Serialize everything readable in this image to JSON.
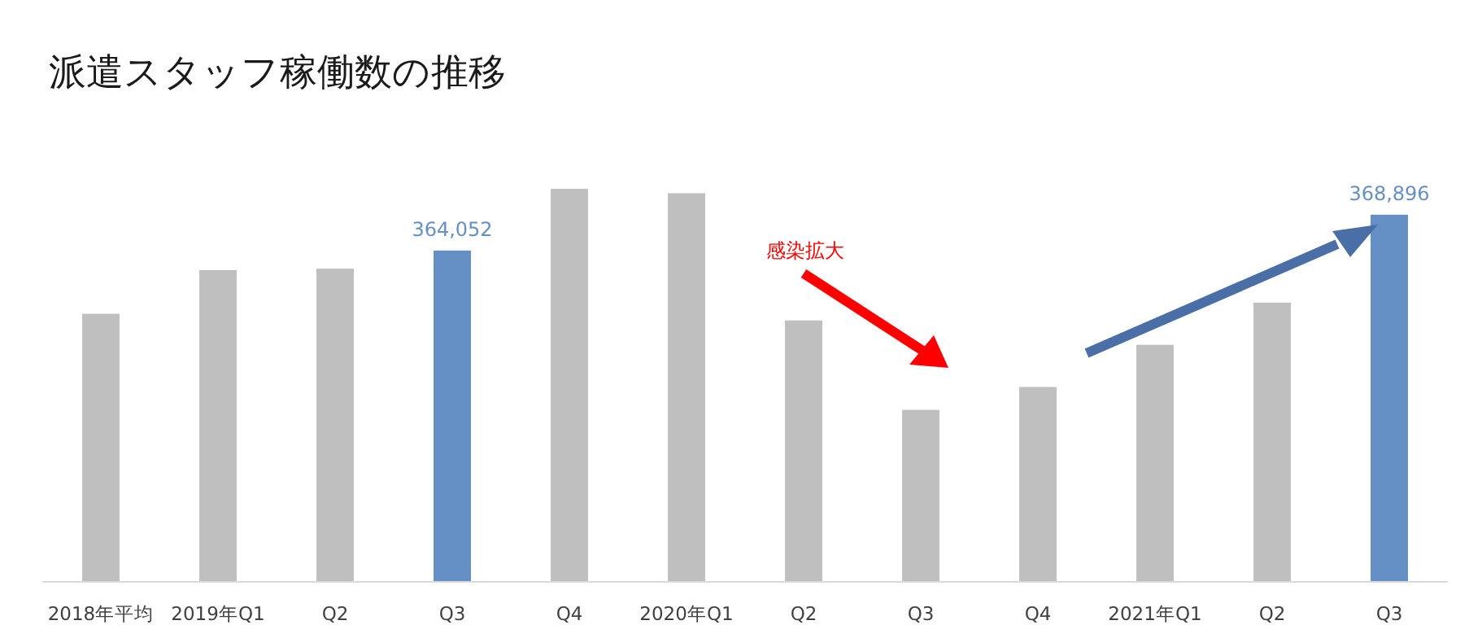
{
  "chart_data": {
    "type": "bar",
    "title": "派遣スタッフ稼働数の推移",
    "categories": [
      "2018年平均",
      "2019年Q1",
      "Q2",
      "Q3",
      "Q4",
      "2020年Q1",
      "Q2",
      "Q3",
      "Q4",
      "2021年Q1",
      "Q2",
      "Q3"
    ],
    "values": [
      355500,
      361400,
      361600,
      364052,
      372400,
      371800,
      354600,
      342500,
      345600,
      351300,
      357000,
      368896
    ],
    "colors": [
      "#bfbfbf",
      "#bfbfbf",
      "#bfbfbf",
      "#6590c6",
      "#bfbfbf",
      "#bfbfbf",
      "#bfbfbf",
      "#bfbfbf",
      "#bfbfbf",
      "#bfbfbf",
      "#bfbfbf",
      "#6590c6"
    ],
    "value_labels": [
      null,
      null,
      null,
      "364,052",
      null,
      null,
      null,
      null,
      null,
      null,
      null,
      "368,896"
    ],
    "ylim": [
      319350,
      372400
    ],
    "tick_labels": "x",
    "annotations": [
      "感染拡大"
    ]
  }
}
